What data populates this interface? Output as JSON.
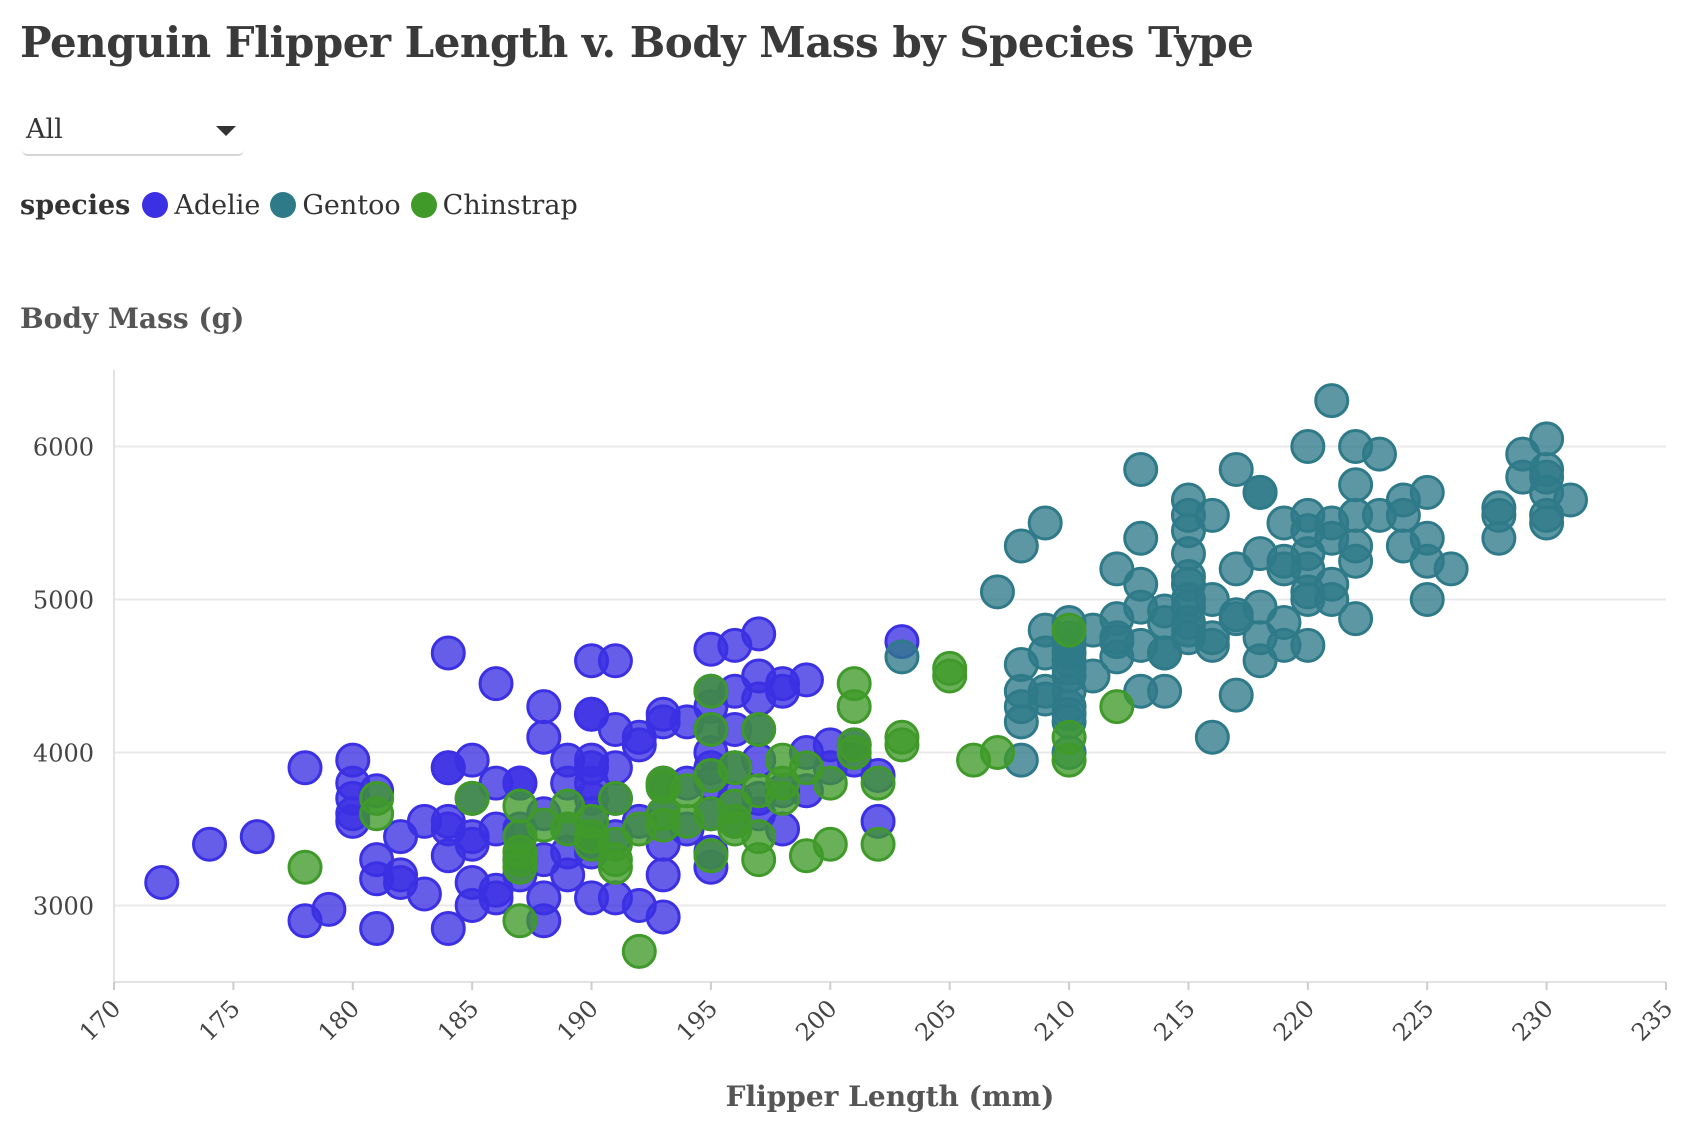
{
  "title": "Penguin Flipper Length v. Body Mass by Species Type",
  "filter": {
    "selected": "All"
  },
  "legend": {
    "title": "species",
    "items": [
      {
        "label": "Adelie",
        "color": "#3b30e3"
      },
      {
        "label": "Gentoo",
        "color": "#2f7a89"
      },
      {
        "label": "Chinstrap",
        "color": "#3f9a2a"
      }
    ]
  },
  "chart_data": {
    "type": "scatter",
    "title": "Penguin Flipper Length v. Body Mass by Species Type",
    "xlabel": "Flipper Length (mm)",
    "ylabel": "Body Mass (g)",
    "xlim": [
      170,
      235
    ],
    "ylim": [
      2500,
      6500
    ],
    "xticks": [
      170,
      175,
      180,
      185,
      190,
      195,
      200,
      205,
      210,
      215,
      220,
      225,
      230,
      235
    ],
    "yticks": [
      3000,
      4000,
      5000,
      6000
    ],
    "grid": "horizontal",
    "legend_position": "top-left",
    "series": [
      {
        "name": "Adelie",
        "color": "#3b30e3",
        "points": [
          [
            172,
            3150
          ],
          [
            174,
            3400
          ],
          [
            176,
            3450
          ],
          [
            178,
            3900
          ],
          [
            178,
            2900
          ],
          [
            179,
            2975
          ],
          [
            180,
            3950
          ],
          [
            180,
            3800
          ],
          [
            180,
            3700
          ],
          [
            180,
            3600
          ],
          [
            180,
            3550
          ],
          [
            181,
            3750
          ],
          [
            181,
            3300
          ],
          [
            181,
            3175
          ],
          [
            181,
            2850
          ],
          [
            182,
            3450
          ],
          [
            182,
            3200
          ],
          [
            182,
            3150
          ],
          [
            183,
            3550
          ],
          [
            183,
            3075
          ],
          [
            184,
            4650
          ],
          [
            184,
            3900
          ],
          [
            184,
            3900
          ],
          [
            184,
            3550
          ],
          [
            184,
            3500
          ],
          [
            184,
            3325
          ],
          [
            184,
            2850
          ],
          [
            185,
            3950
          ],
          [
            185,
            3700
          ],
          [
            185,
            3450
          ],
          [
            185,
            3400
          ],
          [
            185,
            3150
          ],
          [
            185,
            3000
          ],
          [
            186,
            4450
          ],
          [
            186,
            3800
          ],
          [
            186,
            3500
          ],
          [
            186,
            3100
          ],
          [
            186,
            3050
          ],
          [
            187,
            3800
          ],
          [
            187,
            3800
          ],
          [
            187,
            3500
          ],
          [
            187,
            3450
          ],
          [
            187,
            3300
          ],
          [
            187,
            3200
          ],
          [
            188,
            4300
          ],
          [
            188,
            4100
          ],
          [
            188,
            3600
          ],
          [
            188,
            3300
          ],
          [
            188,
            3050
          ],
          [
            188,
            2900
          ],
          [
            189,
            3950
          ],
          [
            189,
            3800
          ],
          [
            189,
            3500
          ],
          [
            189,
            3350
          ],
          [
            189,
            3200
          ],
          [
            190,
            4600
          ],
          [
            190,
            4250
          ],
          [
            190,
            4250
          ],
          [
            190,
            3950
          ],
          [
            190,
            3900
          ],
          [
            190,
            3800
          ],
          [
            190,
            3700
          ],
          [
            190,
            3600
          ],
          [
            190,
            3450
          ],
          [
            190,
            3400
          ],
          [
            190,
            3350
          ],
          [
            190,
            3050
          ],
          [
            191,
            4600
          ],
          [
            191,
            4150
          ],
          [
            191,
            3900
          ],
          [
            191,
            3700
          ],
          [
            191,
            3450
          ],
          [
            191,
            3050
          ],
          [
            192,
            4100
          ],
          [
            192,
            4050
          ],
          [
            192,
            3550
          ],
          [
            192,
            3000
          ],
          [
            193,
            4250
          ],
          [
            193,
            4200
          ],
          [
            193,
            3800
          ],
          [
            193,
            3775
          ],
          [
            193,
            3600
          ],
          [
            193,
            3400
          ],
          [
            193,
            3200
          ],
          [
            193,
            2925
          ],
          [
            194,
            4200
          ],
          [
            194,
            3800
          ],
          [
            194,
            3500
          ],
          [
            195,
            4675
          ],
          [
            195,
            4400
          ],
          [
            195,
            4300
          ],
          [
            195,
            4150
          ],
          [
            195,
            4000
          ],
          [
            195,
            3900
          ],
          [
            195,
            3800
          ],
          [
            195,
            3600
          ],
          [
            195,
            3350
          ],
          [
            195,
            3250
          ],
          [
            196,
            4700
          ],
          [
            196,
            4400
          ],
          [
            196,
            4150
          ],
          [
            196,
            3900
          ],
          [
            196,
            3700
          ],
          [
            196,
            3550
          ],
          [
            197,
            4775
          ],
          [
            197,
            4500
          ],
          [
            197,
            4350
          ],
          [
            197,
            4150
          ],
          [
            197,
            3950
          ],
          [
            197,
            3700
          ],
          [
            197,
            3600
          ],
          [
            198,
            4450
          ],
          [
            198,
            4400
          ],
          [
            198,
            3750
          ],
          [
            198,
            3500
          ],
          [
            199,
            4475
          ],
          [
            199,
            4000
          ],
          [
            199,
            3750
          ],
          [
            200,
            4050
          ],
          [
            200,
            3900
          ],
          [
            201,
            4050
          ],
          [
            201,
            3950
          ],
          [
            202,
            3850
          ],
          [
            202,
            3550
          ],
          [
            203,
            4725
          ]
        ]
      },
      {
        "name": "Gentoo",
        "color": "#2f7a89",
        "points": [
          [
            203,
            4625
          ],
          [
            207,
            5050
          ],
          [
            208,
            5350
          ],
          [
            208,
            4575
          ],
          [
            208,
            4400
          ],
          [
            208,
            4300
          ],
          [
            208,
            4200
          ],
          [
            208,
            3950
          ],
          [
            209,
            5500
          ],
          [
            209,
            4800
          ],
          [
            209,
            4650
          ],
          [
            209,
            4400
          ],
          [
            209,
            4350
          ],
          [
            210,
            4850
          ],
          [
            210,
            4750
          ],
          [
            210,
            4700
          ],
          [
            210,
            4650
          ],
          [
            210,
            4600
          ],
          [
            210,
            4550
          ],
          [
            210,
            4500
          ],
          [
            210,
            4400
          ],
          [
            210,
            4300
          ],
          [
            210,
            4250
          ],
          [
            210,
            4200
          ],
          [
            210,
            4000
          ],
          [
            211,
            4800
          ],
          [
            211,
            4500
          ],
          [
            212,
            5200
          ],
          [
            212,
            4875
          ],
          [
            212,
            4750
          ],
          [
            212,
            4725
          ],
          [
            212,
            4625
          ],
          [
            213,
            5850
          ],
          [
            213,
            5400
          ],
          [
            213,
            5100
          ],
          [
            213,
            4950
          ],
          [
            213,
            4700
          ],
          [
            213,
            4400
          ],
          [
            214,
            4925
          ],
          [
            214,
            4850
          ],
          [
            214,
            4650
          ],
          [
            214,
            4650
          ],
          [
            214,
            4400
          ],
          [
            215,
            5650
          ],
          [
            215,
            5550
          ],
          [
            215,
            5450
          ],
          [
            215,
            5300
          ],
          [
            215,
            5150
          ],
          [
            215,
            5100
          ],
          [
            215,
            5000
          ],
          [
            215,
            4950
          ],
          [
            215,
            4850
          ],
          [
            215,
            4800
          ],
          [
            215,
            4750
          ],
          [
            216,
            5550
          ],
          [
            216,
            5000
          ],
          [
            216,
            4750
          ],
          [
            216,
            4700
          ],
          [
            216,
            4100
          ],
          [
            217,
            5850
          ],
          [
            217,
            5200
          ],
          [
            217,
            4900
          ],
          [
            217,
            4875
          ],
          [
            217,
            4375
          ],
          [
            218,
            5700
          ],
          [
            218,
            5700
          ],
          [
            218,
            5300
          ],
          [
            218,
            4950
          ],
          [
            218,
            4750
          ],
          [
            218,
            4600
          ],
          [
            219,
            5500
          ],
          [
            219,
            5250
          ],
          [
            219,
            5200
          ],
          [
            219,
            4850
          ],
          [
            219,
            4700
          ],
          [
            220,
            6000
          ],
          [
            220,
            5550
          ],
          [
            220,
            5450
          ],
          [
            220,
            5300
          ],
          [
            220,
            5200
          ],
          [
            220,
            5050
          ],
          [
            220,
            5000
          ],
          [
            220,
            4700
          ],
          [
            221,
            6300
          ],
          [
            221,
            5500
          ],
          [
            221,
            5400
          ],
          [
            221,
            5100
          ],
          [
            221,
            5000
          ],
          [
            222,
            6000
          ],
          [
            222,
            5750
          ],
          [
            222,
            5550
          ],
          [
            222,
            5350
          ],
          [
            222,
            5250
          ],
          [
            222,
            4875
          ],
          [
            223,
            5950
          ],
          [
            223,
            5550
          ],
          [
            224,
            5650
          ],
          [
            224,
            5550
          ],
          [
            224,
            5350
          ],
          [
            225,
            5700
          ],
          [
            225,
            5400
          ],
          [
            225,
            5250
          ],
          [
            225,
            5000
          ],
          [
            226,
            5200
          ],
          [
            228,
            5600
          ],
          [
            228,
            5550
          ],
          [
            228,
            5400
          ],
          [
            229,
            5950
          ],
          [
            229,
            5800
          ],
          [
            230,
            6050
          ],
          [
            230,
            5850
          ],
          [
            230,
            5800
          ],
          [
            230,
            5700
          ],
          [
            230,
            5550
          ],
          [
            230,
            5500
          ],
          [
            231,
            5650
          ]
        ]
      },
      {
        "name": "Chinstrap",
        "color": "#3f9a2a",
        "points": [
          [
            178,
            3250
          ],
          [
            181,
            3700
          ],
          [
            181,
            3600
          ],
          [
            185,
            3700
          ],
          [
            187,
            3650
          ],
          [
            187,
            3450
          ],
          [
            187,
            3350
          ],
          [
            187,
            3300
          ],
          [
            187,
            3250
          ],
          [
            187,
            2900
          ],
          [
            188,
            3525
          ],
          [
            189,
            3650
          ],
          [
            189,
            3500
          ],
          [
            190,
            3550
          ],
          [
            190,
            3450
          ],
          [
            190,
            3400
          ],
          [
            191,
            3700
          ],
          [
            191,
            3400
          ],
          [
            191,
            3300
          ],
          [
            191,
            3250
          ],
          [
            192,
            3500
          ],
          [
            192,
            2700
          ],
          [
            193,
            3800
          ],
          [
            193,
            3775
          ],
          [
            193,
            3600
          ],
          [
            193,
            3525
          ],
          [
            194,
            3750
          ],
          [
            194,
            3550
          ],
          [
            195,
            4400
          ],
          [
            195,
            4150
          ],
          [
            195,
            3850
          ],
          [
            195,
            3600
          ],
          [
            195,
            3325
          ],
          [
            196,
            3900
          ],
          [
            196,
            3650
          ],
          [
            196,
            3550
          ],
          [
            196,
            3500
          ],
          [
            197,
            4150
          ],
          [
            197,
            3750
          ],
          [
            197,
            3450
          ],
          [
            197,
            3300
          ],
          [
            198,
            3950
          ],
          [
            198,
            3800
          ],
          [
            198,
            3700
          ],
          [
            199,
            3900
          ],
          [
            199,
            3325
          ],
          [
            200,
            3800
          ],
          [
            200,
            3400
          ],
          [
            201,
            4450
          ],
          [
            201,
            4300
          ],
          [
            201,
            4050
          ],
          [
            201,
            4000
          ],
          [
            202,
            3800
          ],
          [
            202,
            3400
          ],
          [
            203,
            4100
          ],
          [
            203,
            4050
          ],
          [
            205,
            4550
          ],
          [
            205,
            4500
          ],
          [
            206,
            3950
          ],
          [
            207,
            4000
          ],
          [
            210,
            4800
          ],
          [
            210,
            4100
          ],
          [
            210,
            3950
          ],
          [
            212,
            4300
          ]
        ]
      }
    ]
  }
}
